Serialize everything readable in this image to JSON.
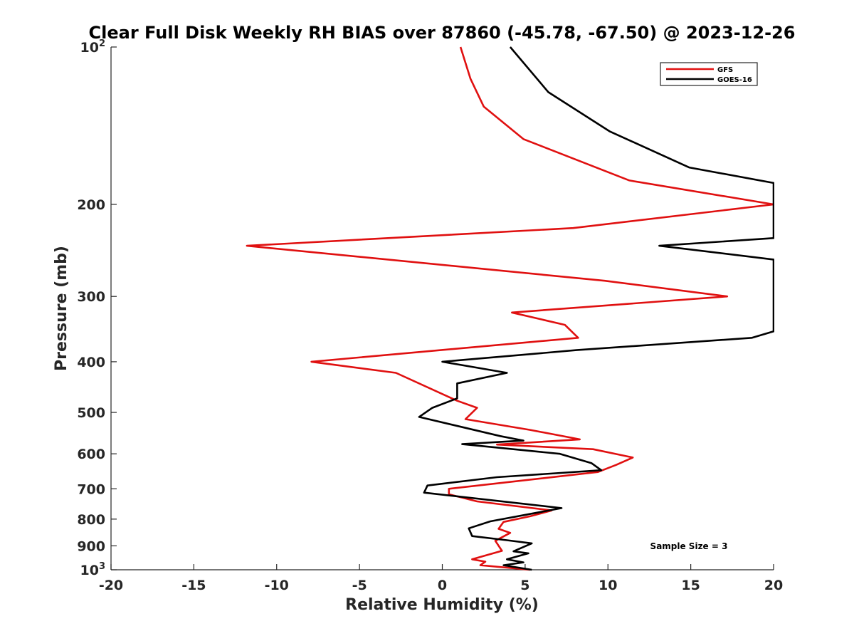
{
  "chart_data": {
    "type": "line",
    "title": "Clear Full Disk Weekly RH BIAS over 87860 (-45.78, -67.50) @ 2023-12-26",
    "xlabel": "Relative Humidity (%)",
    "ylabel": "Pressure (mb)",
    "xlim": [
      -20,
      20
    ],
    "ylim": [
      100,
      1000
    ],
    "y_scale": "log",
    "y_reversed": true,
    "xticks": [
      -20,
      -15,
      -10,
      -5,
      0,
      5,
      10,
      15,
      20
    ],
    "x_tick_labels": [
      "-20",
      "-15",
      "-10",
      "-5",
      "0",
      "5",
      "10",
      "15",
      "20"
    ],
    "yticks": [
      {
        "value": 100,
        "label": "10",
        "exp": "2"
      },
      {
        "value": 200,
        "label": "200"
      },
      {
        "value": 300,
        "label": "300"
      },
      {
        "value": 400,
        "label": "400"
      },
      {
        "value": 500,
        "label": "500"
      },
      {
        "value": 600,
        "label": "600"
      },
      {
        "value": 700,
        "label": "700"
      },
      {
        "value": 800,
        "label": "800"
      },
      {
        "value": 900,
        "label": "900"
      },
      {
        "value": 1000,
        "label": "10",
        "exp": "3"
      }
    ],
    "grid": false,
    "legend_position": "top-right",
    "annotation": "Sample Size = 3",
    "series": [
      {
        "name": "GFS",
        "color": "#e01010",
        "points": [
          [
            1.1,
            100
          ],
          [
            1.7,
            115
          ],
          [
            2.5,
            130
          ],
          [
            4.9,
            150
          ],
          [
            11.3,
            180
          ],
          [
            20.0,
            200
          ],
          [
            7.9,
            222
          ],
          [
            -11.8,
            240
          ],
          [
            9.8,
            280
          ],
          [
            17.2,
            300
          ],
          [
            4.2,
            322
          ],
          [
            7.4,
            340
          ],
          [
            8.2,
            360
          ],
          [
            -7.9,
            400
          ],
          [
            -2.8,
            420
          ],
          [
            0.9,
            475
          ],
          [
            2.1,
            490
          ],
          [
            1.4,
            515
          ],
          [
            5.3,
            540
          ],
          [
            8.3,
            563
          ],
          [
            3.3,
            576
          ],
          [
            9.1,
            588
          ],
          [
            11.5,
            610
          ],
          [
            10.5,
            630
          ],
          [
            9.4,
            650
          ],
          [
            0.4,
            700
          ],
          [
            0.4,
            717
          ],
          [
            2.1,
            740
          ],
          [
            6.6,
            770
          ],
          [
            5.3,
            790
          ],
          [
            3.7,
            810
          ],
          [
            3.4,
            835
          ],
          [
            4.1,
            850
          ],
          [
            3.2,
            880
          ],
          [
            3.6,
            920
          ],
          [
            1.8,
            955
          ],
          [
            2.6,
            965
          ],
          [
            2.3,
            980
          ],
          [
            5.3,
            1000
          ]
        ]
      },
      {
        "name": "GOES-16",
        "color": "#000000",
        "points": [
          [
            4.1,
            100
          ],
          [
            6.4,
            122
          ],
          [
            10.1,
            145
          ],
          [
            14.9,
            170
          ],
          [
            20.0,
            182
          ],
          [
            20.0,
            232
          ],
          [
            13.1,
            240
          ],
          [
            20.0,
            255
          ],
          [
            20.0,
            350
          ],
          [
            18.7,
            360
          ],
          [
            8.1,
            380
          ],
          [
            0.0,
            400
          ],
          [
            3.9,
            420
          ],
          [
            0.9,
            440
          ],
          [
            0.9,
            470
          ],
          [
            -0.6,
            490
          ],
          [
            -1.4,
            510
          ],
          [
            3.5,
            555
          ],
          [
            4.9,
            566
          ],
          [
            1.2,
            575
          ],
          [
            7.1,
            600
          ],
          [
            9.0,
            625
          ],
          [
            9.6,
            645
          ],
          [
            3.3,
            665
          ],
          [
            -0.9,
            690
          ],
          [
            -1.1,
            712
          ],
          [
            7.2,
            762
          ],
          [
            2.9,
            808
          ],
          [
            1.6,
            833
          ],
          [
            1.8,
            862
          ],
          [
            3.9,
            878
          ],
          [
            5.4,
            890
          ],
          [
            4.3,
            922
          ],
          [
            5.2,
            930
          ],
          [
            3.9,
            955
          ],
          [
            4.9,
            968
          ],
          [
            3.7,
            980
          ],
          [
            5.4,
            1000
          ]
        ]
      }
    ]
  }
}
